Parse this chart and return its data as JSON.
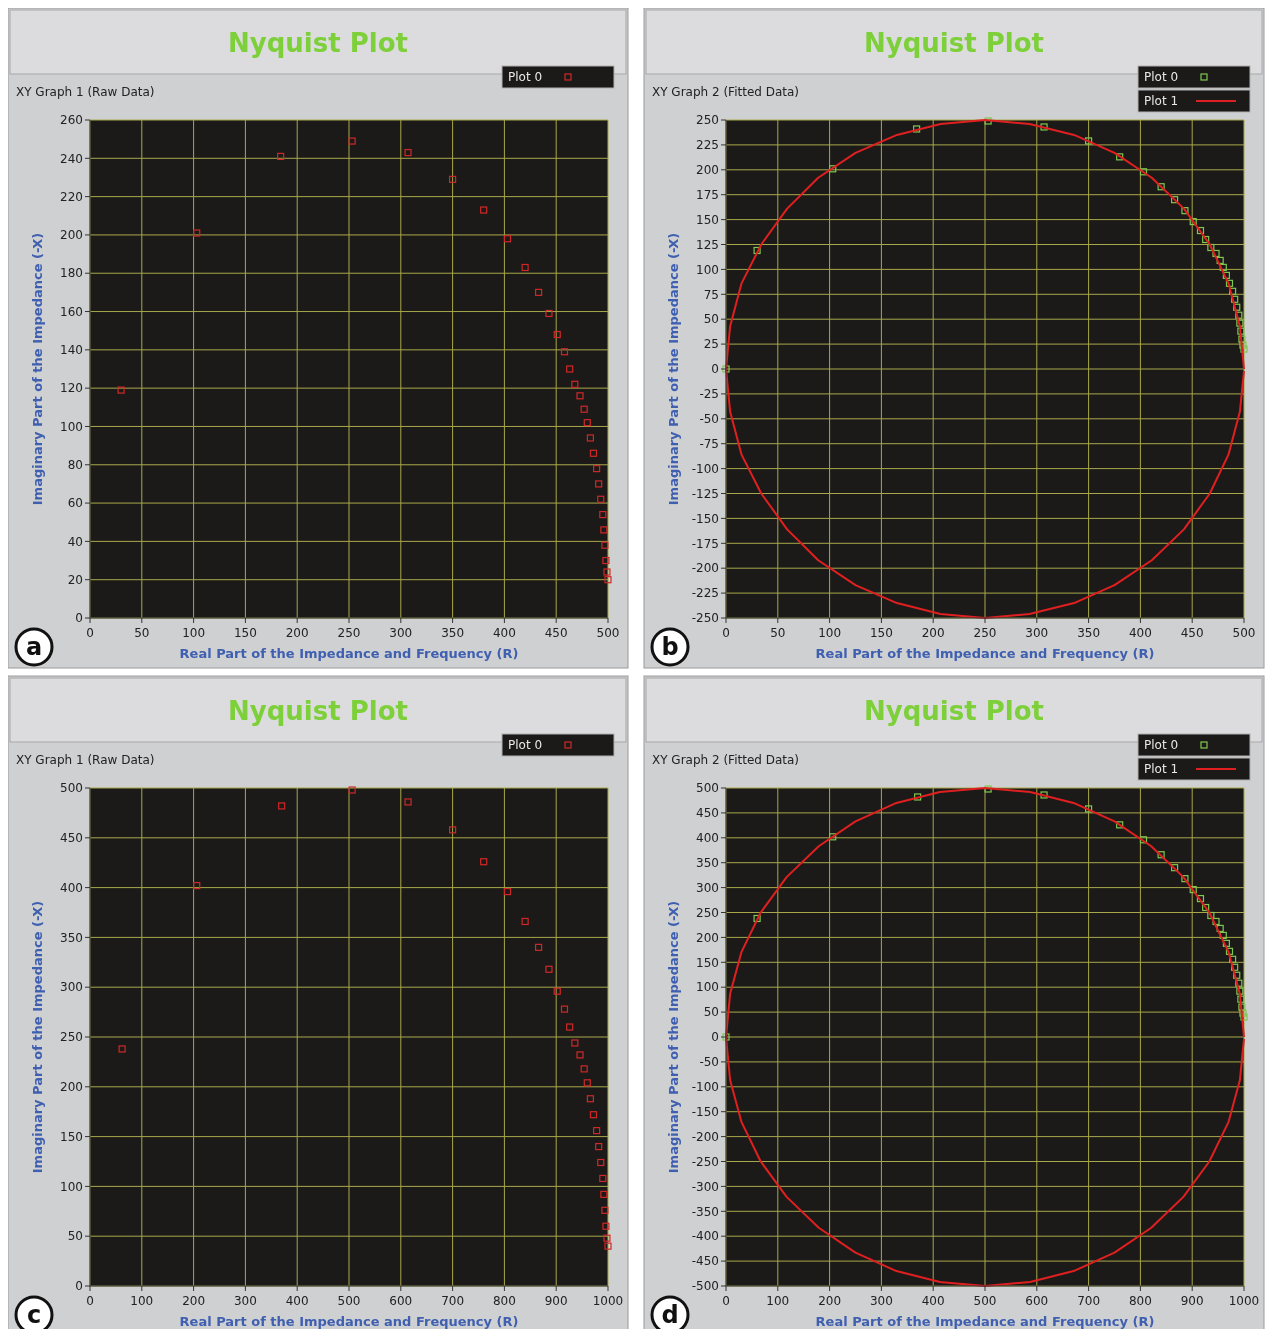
{
  "chart_data": [
    {
      "type": "scatter",
      "title": "Nyquist Plot",
      "subtitle": "XY Graph 1 (Raw Data)",
      "xlabel": "Real Part of the Impedance and Frequency (R)",
      "ylabel": "Imaginary Part of the Impedance (-X)",
      "annotations": [
        "a"
      ],
      "grid": true,
      "legend": "top right",
      "xlim": [
        0,
        500
      ],
      "ylim": [
        0,
        260
      ],
      "xticks": [
        0,
        50,
        100,
        150,
        200,
        250,
        300,
        350,
        400,
        450,
        500
      ],
      "yticks": [
        0,
        20,
        40,
        60,
        80,
        100,
        120,
        140,
        160,
        180,
        200,
        220,
        240,
        260
      ],
      "series": [
        {
          "name": "Plot 0",
          "color": "#d02828",
          "marker": "square",
          "x": [
            30,
            103,
            184,
            253,
            307,
            350,
            380,
            403,
            420,
            433,
            443,
            451,
            458,
            463,
            468,
            473,
            477,
            480,
            483,
            486,
            489,
            491,
            493,
            495,
            496,
            497,
            498,
            499,
            500
          ],
          "values": [
            119,
            201,
            241,
            249,
            243,
            229,
            213,
            198,
            183,
            170,
            159,
            148,
            139,
            130,
            122,
            116,
            109,
            102,
            94,
            86,
            78,
            70,
            62,
            54,
            46,
            38,
            30,
            24,
            20
          ]
        }
      ]
    },
    {
      "type": "scatter",
      "title": "Nyquist Plot",
      "subtitle": "XY Graph 2  (Fitted Data)",
      "xlabel": "Real Part of the Impedance and Frequency (R)",
      "ylabel": "Imaginary Part of the Impedance (-X)",
      "annotations": [
        "b"
      ],
      "grid": true,
      "legend": "top right",
      "xlim": [
        0,
        500
      ],
      "ylim": [
        -250,
        250
      ],
      "xticks": [
        0,
        50,
        100,
        150,
        200,
        250,
        300,
        350,
        400,
        450,
        500
      ],
      "yticks": [
        -250,
        -225,
        -200,
        -175,
        -150,
        -125,
        -100,
        -75,
        -50,
        -25,
        0,
        25,
        50,
        75,
        100,
        125,
        150,
        175,
        200,
        225,
        250
      ],
      "series": [
        {
          "name": "Plot 0",
          "color": "#7ec850",
          "marker": "square",
          "x": [
            0,
            30,
            103,
            184,
            253,
            307,
            350,
            380,
            403,
            420,
            433,
            443,
            451,
            458,
            463,
            468,
            473,
            477,
            480,
            483,
            486,
            489,
            491,
            493,
            495,
            496,
            497,
            498,
            499,
            500
          ],
          "values": [
            0,
            119,
            201,
            241,
            249,
            243,
            229,
            213,
            198,
            183,
            170,
            159,
            148,
            139,
            130,
            122,
            116,
            109,
            102,
            94,
            86,
            78,
            70,
            62,
            54,
            46,
            38,
            30,
            24,
            20
          ]
        },
        {
          "name": "Plot 1",
          "type": "line",
          "color": "#e02020",
          "marker": "none",
          "x": [
            500,
            496,
            485,
            467,
            442,
            411,
            375,
            336,
            293,
            250,
            207,
            165,
            125,
            89,
            59,
            34,
            15,
            4,
            0,
            4,
            15,
            34,
            59,
            89,
            125,
            165,
            207,
            250,
            293,
            336,
            375,
            411,
            442,
            467,
            485,
            496,
            500
          ],
          "values": [
            0,
            43,
            86,
            125,
            161,
            192,
            217,
            235,
            246,
            250,
            246,
            235,
            217,
            192,
            161,
            125,
            86,
            43,
            0,
            -43,
            -86,
            -125,
            -161,
            -192,
            -217,
            -235,
            -246,
            -250,
            -246,
            -235,
            -217,
            -192,
            -161,
            -125,
            -86,
            -43,
            -2
          ]
        }
      ]
    },
    {
      "type": "scatter",
      "title": "Nyquist Plot",
      "subtitle": "XY Graph 1 (Raw Data)",
      "xlabel": "Real Part of the Impedance and Frequency (R)",
      "ylabel": "Imaginary Part of the Impedance (-X)",
      "annotations": [
        "c"
      ],
      "grid": true,
      "legend": "top right",
      "xlim": [
        0,
        1000
      ],
      "ylim": [
        0,
        500
      ],
      "xticks": [
        0,
        100,
        200,
        300,
        400,
        500,
        600,
        700,
        800,
        900,
        1000
      ],
      "yticks": [
        0,
        50,
        100,
        150,
        200,
        250,
        300,
        350,
        400,
        450,
        500
      ],
      "series": [
        {
          "name": "Plot 0",
          "color": "#d02828",
          "marker": "square",
          "x": [
            62,
            206,
            370,
            506,
            614,
            700,
            760,
            806,
            840,
            866,
            886,
            902,
            916,
            926,
            936,
            946,
            954,
            960,
            966,
            972,
            978,
            982,
            986,
            990,
            992,
            994,
            996,
            998,
            1000
          ],
          "values": [
            238,
            402,
            482,
            498,
            486,
            458,
            426,
            396,
            366,
            340,
            318,
            296,
            278,
            260,
            244,
            232,
            218,
            204,
            188,
            172,
            156,
            140,
            124,
            108,
            92,
            76,
            60,
            48,
            40
          ]
        }
      ]
    },
    {
      "type": "scatter",
      "title": "Nyquist Plot",
      "subtitle": "XY Graph 2  (Fitted Data)",
      "xlabel": "Real Part of the Impedance and Frequency (R)",
      "ylabel": "Imaginary Part of the Impedance (-X)",
      "annotations": [
        "d"
      ],
      "grid": true,
      "legend": "top right",
      "xlim": [
        0,
        1000
      ],
      "ylim": [
        -500,
        500
      ],
      "xticks": [
        0,
        100,
        200,
        300,
        400,
        500,
        600,
        700,
        800,
        900,
        1000
      ],
      "yticks": [
        -500,
        -450,
        -400,
        -350,
        -300,
        -250,
        -200,
        -150,
        -100,
        -50,
        0,
        50,
        100,
        150,
        200,
        250,
        300,
        350,
        400,
        450,
        500
      ],
      "series": [
        {
          "name": "Plot 0",
          "color": "#7ec850",
          "marker": "square",
          "x": [
            0,
            60,
            206,
            370,
            506,
            614,
            700,
            760,
            806,
            840,
            866,
            886,
            902,
            916,
            926,
            936,
            946,
            954,
            960,
            966,
            972,
            978,
            982,
            986,
            990,
            992,
            994,
            996,
            998,
            1000
          ],
          "values": [
            0,
            238,
            402,
            482,
            498,
            486,
            458,
            426,
            396,
            366,
            340,
            318,
            296,
            278,
            260,
            244,
            232,
            218,
            204,
            188,
            172,
            156,
            140,
            124,
            108,
            92,
            76,
            60,
            48,
            40
          ]
        },
        {
          "name": "Plot 1",
          "type": "line",
          "color": "#e02020",
          "marker": "none",
          "x": [
            1000,
            992,
            970,
            933,
            883,
            821,
            750,
            671,
            587,
            500,
            413,
            329,
            250,
            179,
            117,
            67,
            30,
            8,
            0,
            8,
            30,
            67,
            117,
            179,
            250,
            329,
            413,
            500,
            587,
            671,
            750,
            821,
            883,
            933,
            970,
            992,
            1000
          ],
          "values": [
            0,
            87,
            171,
            250,
            321,
            383,
            433,
            470,
            492,
            500,
            492,
            470,
            433,
            383,
            321,
            250,
            171,
            87,
            0,
            -87,
            -171,
            -250,
            -321,
            -383,
            -433,
            -470,
            -492,
            -500,
            -492,
            -470,
            -433,
            -383,
            -321,
            -250,
            -171,
            -87,
            -4
          ]
        }
      ]
    }
  ]
}
